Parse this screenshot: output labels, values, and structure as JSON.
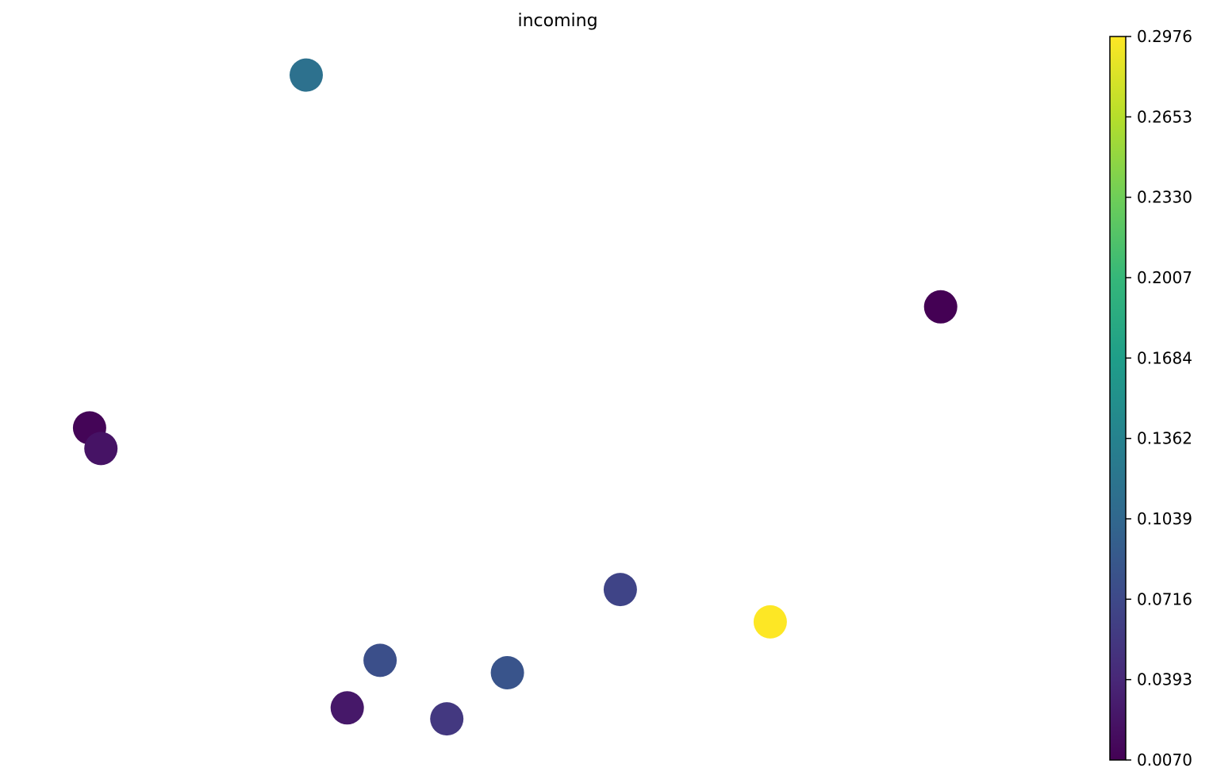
{
  "chart_data": {
    "type": "scatter",
    "title": "incoming",
    "xlabel": "",
    "ylabel": "",
    "axes_visible": false,
    "grid": false,
    "xlim": [
      0,
      1
    ],
    "ylim": [
      0,
      1
    ],
    "points": [
      {
        "x": 0.255,
        "y": 0.967,
        "value": 0.115
      },
      {
        "x": 0.873,
        "y": 0.63,
        "value": 0.007
      },
      {
        "x": 0.044,
        "y": 0.454,
        "value": 0.01
      },
      {
        "x": 0.055,
        "y": 0.424,
        "value": 0.022
      },
      {
        "x": 0.561,
        "y": 0.219,
        "value": 0.067
      },
      {
        "x": 0.707,
        "y": 0.172,
        "value": 0.2976
      },
      {
        "x": 0.327,
        "y": 0.116,
        "value": 0.078
      },
      {
        "x": 0.451,
        "y": 0.098,
        "value": 0.083
      },
      {
        "x": 0.295,
        "y": 0.047,
        "value": 0.026
      },
      {
        "x": 0.392,
        "y": 0.031,
        "value": 0.055
      }
    ],
    "colorbar": {
      "colormap": "viridis",
      "min": 0.007,
      "max": 0.2976,
      "ticks": [
        "0.0070",
        "0.0393",
        "0.0716",
        "0.1039",
        "0.1362",
        "0.1684",
        "0.2007",
        "0.2330",
        "0.2653",
        "0.2976"
      ]
    }
  }
}
